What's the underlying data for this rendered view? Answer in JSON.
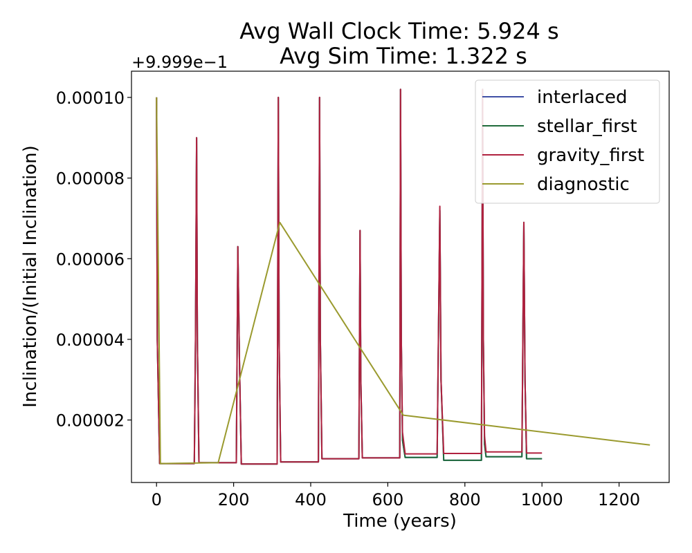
{
  "chart_data": {
    "type": "line",
    "title_lines": [
      "Avg Wall Clock Time: 5.924 s",
      "Avg Sim Time: 1.322 s"
    ],
    "offset_text": "+9.999e−1",
    "xlabel": "Time (years)",
    "ylabel": "Inclination/(Initial Inclination)",
    "xlim": [
      -65,
      1330
    ],
    "ylim": [
      4.5e-06,
      0.0001065
    ],
    "xticks": [
      0,
      200,
      400,
      600,
      800,
      1000,
      1200
    ],
    "xtick_labels": [
      "0",
      "200",
      "400",
      "600",
      "800",
      "1000",
      "1200"
    ],
    "yticks": [
      2e-05,
      4e-05,
      6e-05,
      8e-05,
      0.0001
    ],
    "ytick_labels": [
      "0.00002",
      "0.00004",
      "0.00006",
      "0.00008",
      "0.00010"
    ],
    "legend_position": "top-right",
    "series": [
      {
        "name": "interlaced",
        "color": "#3f4fa5",
        "x": [
          0,
          2,
          8,
          98,
          101,
          104,
          106,
          110,
          207,
          211,
          215,
          220,
          313,
          316,
          318,
          322,
          420,
          423,
          425,
          429,
          525,
          528,
          530,
          534,
          631,
          633,
          635,
          638,
          645,
          728,
          735,
          738,
          745,
          843,
          846,
          848,
          851,
          855,
          948,
          953,
          956,
          960,
          1000
        ],
        "y": [
          0.0001,
          4e-05,
          9.2e-06,
          9.2e-06,
          4e-05,
          9e-05,
          4e-05,
          9.4e-06,
          9.4e-06,
          6.3e-05,
          3.5e-05,
          9.1e-06,
          9.1e-06,
          0.0001,
          4e-05,
          9.6e-06,
          9.6e-06,
          0.0001,
          4e-05,
          1.04e-05,
          1.04e-05,
          6.7e-05,
          3e-05,
          1.06e-05,
          1.06e-05,
          0.000102,
          4e-05,
          1.5e-05,
          1.07e-05,
          1.07e-05,
          7.2e-05,
          3e-05,
          1e-05,
          1e-05,
          0.000102,
          4e-05,
          1.4e-05,
          1.09e-05,
          1.09e-05,
          6.9e-05,
          3e-05,
          1.04e-05,
          1.04e-05
        ]
      },
      {
        "name": "stellar_first",
        "color": "#1f6b3a",
        "x": [
          0,
          2,
          8,
          98,
          101,
          104,
          106,
          110,
          207,
          211,
          215,
          220,
          313,
          316,
          318,
          322,
          420,
          423,
          425,
          429,
          525,
          528,
          530,
          534,
          631,
          633,
          635,
          638,
          645,
          728,
          735,
          738,
          745,
          843,
          846,
          848,
          851,
          855,
          948,
          953,
          956,
          960,
          1000
        ],
        "y": [
          0.0001,
          4e-05,
          9.2e-06,
          9.2e-06,
          4e-05,
          9e-05,
          4e-05,
          9.4e-06,
          9.4e-06,
          6.3e-05,
          3.5e-05,
          9.1e-06,
          9.1e-06,
          0.0001,
          4e-05,
          9.6e-06,
          9.6e-06,
          0.0001,
          4e-05,
          1.04e-05,
          1.04e-05,
          6.7e-05,
          3e-05,
          1.06e-05,
          1.06e-05,
          0.000102,
          4e-05,
          1.5e-05,
          1.07e-05,
          1.07e-05,
          7.2e-05,
          3e-05,
          1e-05,
          1e-05,
          0.000102,
          4e-05,
          1.4e-05,
          1.09e-05,
          1.09e-05,
          6.9e-05,
          3e-05,
          1.04e-05,
          1.04e-05
        ]
      },
      {
        "name": "gravity_first",
        "color": "#b0213f",
        "x": [
          0,
          2,
          8,
          98,
          101,
          104,
          106,
          110,
          207,
          211,
          215,
          220,
          313,
          316,
          318,
          322,
          420,
          423,
          425,
          429,
          525,
          528,
          530,
          534,
          631,
          633,
          635,
          638,
          645,
          728,
          735,
          738,
          745,
          843,
          846,
          848,
          851,
          855,
          948,
          953,
          956,
          960,
          1000
        ],
        "y": [
          0.0001,
          4e-05,
          9.2e-06,
          9.2e-06,
          4e-05,
          9e-05,
          4e-05,
          9.4e-06,
          9.4e-06,
          6.3e-05,
          3.5e-05,
          9.1e-06,
          9.1e-06,
          0.0001,
          4e-05,
          9.6e-06,
          9.6e-06,
          0.0001,
          4e-05,
          1.04e-05,
          1.04e-05,
          6.7e-05,
          3e-05,
          1.06e-05,
          1.06e-05,
          0.000102,
          4e-05,
          1.7e-05,
          1.16e-05,
          1.16e-05,
          7.3e-05,
          3e-05,
          1.17e-05,
          1.17e-05,
          0.000102,
          4e-05,
          1.6e-05,
          1.21e-05,
          1.21e-05,
          6.9e-05,
          3e-05,
          1.18e-05,
          1.18e-05
        ]
      },
      {
        "name": "diagnostic",
        "color": "#9a9a2e",
        "x": [
          0,
          10,
          160,
          320,
          640,
          1280
        ],
        "y": [
          0.0001,
          9.2e-06,
          9.4e-06,
          6.9e-05,
          2.12e-05,
          1.38e-05
        ]
      }
    ]
  }
}
